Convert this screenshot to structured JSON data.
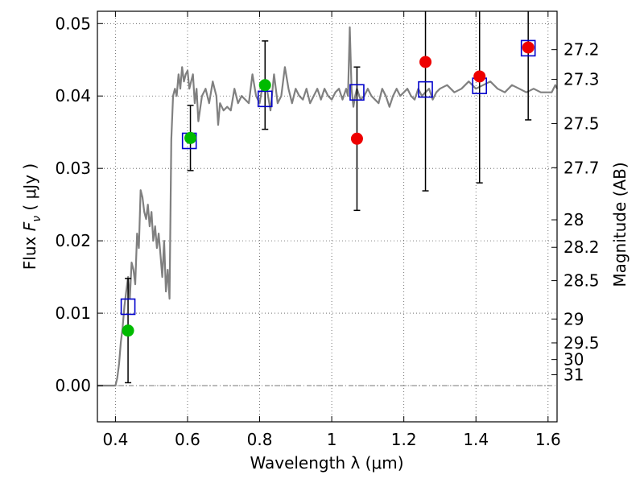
{
  "chart_data": {
    "type": "scatter",
    "xlabel": "Wavelength  λ (μm)",
    "ylabel_left_main": "Flux  ",
    "ylabel_left_var": "F",
    "ylabel_left_sub": "ν",
    "ylabel_left_unit": "  ( μJy )",
    "ylabel_right": "Magnitude (AB)",
    "xlim": [
      0.35,
      1.625
    ],
    "ylim": [
      -0.005,
      0.0517
    ],
    "x_ticks": [
      {
        "value": 0.4,
        "label": "0.4"
      },
      {
        "value": 0.6,
        "label": "0.6"
      },
      {
        "value": 0.8,
        "label": "0.8"
      },
      {
        "value": 1.0,
        "label": "1"
      },
      {
        "value": 1.2,
        "label": "1.2"
      },
      {
        "value": 1.4,
        "label": "1.4"
      },
      {
        "value": 1.6,
        "label": "1.6"
      }
    ],
    "y_ticks": [
      {
        "value": 0.0,
        "label": "0.00"
      },
      {
        "value": 0.01,
        "label": "0.01"
      },
      {
        "value": 0.02,
        "label": "0.02"
      },
      {
        "value": 0.03,
        "label": "0.03"
      },
      {
        "value": 0.04,
        "label": "0.04"
      },
      {
        "value": 0.05,
        "label": "0.05"
      }
    ],
    "right_ticks": [
      {
        "flux": 0.0464,
        "label": "27.2"
      },
      {
        "flux": 0.0423,
        "label": "27.3"
      },
      {
        "flux": 0.0362,
        "label": "27.5"
      },
      {
        "flux": 0.0301,
        "label": "27.7"
      },
      {
        "flux": 0.0229,
        "label": "28"
      },
      {
        "flux": 0.0191,
        "label": "28.2"
      },
      {
        "flux": 0.0145,
        "label": "28.5"
      },
      {
        "flux": 0.0092,
        "label": "29"
      },
      {
        "flux": 0.0059,
        "label": "29.5"
      },
      {
        "flux": 0.0036,
        "label": "30"
      },
      {
        "flux": 0.0015,
        "label": "31"
      }
    ],
    "grid": true,
    "colors": {
      "spectrum": "#808080",
      "model_box": "#0000cc",
      "detection": "#00bb00",
      "upper": "#ee0000",
      "errorbar": "#000000",
      "zero_line": "#777777"
    },
    "series": [
      {
        "style": "spectrum-line",
        "x": [
          0.35,
          0.4,
          0.405,
          0.41,
          0.415,
          0.42,
          0.425,
          0.43,
          0.435,
          0.44,
          0.445,
          0.45,
          0.455,
          0.46,
          0.465,
          0.47,
          0.475,
          0.48,
          0.485,
          0.49,
          0.495,
          0.5,
          0.505,
          0.51,
          0.515,
          0.52,
          0.525,
          0.53,
          0.535,
          0.54,
          0.545,
          0.55,
          0.555,
          0.56,
          0.565,
          0.57,
          0.575,
          0.58,
          0.585,
          0.59,
          0.595,
          0.6,
          0.605,
          0.61,
          0.615,
          0.62,
          0.625,
          0.63,
          0.64,
          0.65,
          0.66,
          0.67,
          0.675,
          0.68,
          0.685,
          0.69,
          0.7,
          0.71,
          0.72,
          0.73,
          0.74,
          0.75,
          0.76,
          0.77,
          0.78,
          0.79,
          0.8,
          0.81,
          0.82,
          0.83,
          0.84,
          0.85,
          0.86,
          0.87,
          0.88,
          0.89,
          0.9,
          0.91,
          0.92,
          0.93,
          0.94,
          0.95,
          0.96,
          0.97,
          0.98,
          0.99,
          1.0,
          1.01,
          1.02,
          1.03,
          1.04,
          1.045,
          1.05,
          1.055,
          1.06,
          1.065,
          1.07,
          1.08,
          1.09,
          1.1,
          1.11,
          1.12,
          1.13,
          1.14,
          1.15,
          1.16,
          1.17,
          1.18,
          1.19,
          1.2,
          1.21,
          1.22,
          1.23,
          1.24,
          1.25,
          1.26,
          1.27,
          1.28,
          1.29,
          1.3,
          1.32,
          1.34,
          1.36,
          1.38,
          1.4,
          1.42,
          1.44,
          1.46,
          1.48,
          1.5,
          1.52,
          1.54,
          1.56,
          1.58,
          1.6,
          1.61,
          1.62,
          1.625
        ],
        "y": [
          0.0,
          0.0,
          0.001,
          0.003,
          0.006,
          0.008,
          0.011,
          0.013,
          0.015,
          0.012,
          0.017,
          0.016,
          0.014,
          0.021,
          0.019,
          0.027,
          0.026,
          0.024,
          0.023,
          0.025,
          0.022,
          0.024,
          0.02,
          0.022,
          0.019,
          0.021,
          0.018,
          0.015,
          0.02,
          0.013,
          0.016,
          0.012,
          0.034,
          0.04,
          0.041,
          0.04,
          0.043,
          0.041,
          0.044,
          0.042,
          0.043,
          0.0435,
          0.041,
          0.042,
          0.043,
          0.039,
          0.041,
          0.0365,
          0.04,
          0.041,
          0.039,
          0.042,
          0.041,
          0.04,
          0.036,
          0.039,
          0.038,
          0.0385,
          0.038,
          0.041,
          0.039,
          0.04,
          0.0395,
          0.039,
          0.043,
          0.04,
          0.039,
          0.042,
          0.041,
          0.038,
          0.043,
          0.039,
          0.04,
          0.044,
          0.041,
          0.039,
          0.041,
          0.04,
          0.0395,
          0.041,
          0.039,
          0.04,
          0.041,
          0.0395,
          0.041,
          0.04,
          0.0395,
          0.0405,
          0.041,
          0.0395,
          0.041,
          0.04,
          0.0495,
          0.041,
          0.0385,
          0.04,
          0.041,
          0.0395,
          0.04,
          0.041,
          0.04,
          0.0395,
          0.039,
          0.041,
          0.04,
          0.0385,
          0.04,
          0.041,
          0.04,
          0.0405,
          0.041,
          0.04,
          0.0395,
          0.041,
          0.04,
          0.0405,
          0.041,
          0.0395,
          0.0405,
          0.041,
          0.0415,
          0.0405,
          0.041,
          0.042,
          0.041,
          0.0415,
          0.042,
          0.041,
          0.0405,
          0.0415,
          0.041,
          0.0405,
          0.041,
          0.0405,
          0.0405,
          0.0405,
          0.0415,
          0.041
        ]
      },
      {
        "style": "model-boxes",
        "x": [
          0.435,
          0.605,
          0.815,
          1.07,
          1.26,
          1.41,
          1.545
        ],
        "y": [
          0.0109,
          0.0338,
          0.0396,
          0.0405,
          0.0409,
          0.0414,
          0.0466
        ]
      },
      {
        "style": "detections",
        "x": [
          0.435,
          0.608,
          0.815
        ],
        "y": [
          0.0076,
          0.0342,
          0.0415
        ],
        "err": [
          0.0072,
          0.0045,
          0.0061
        ]
      },
      {
        "style": "upper-limits",
        "x": [
          1.07,
          1.26,
          1.41,
          1.545
        ],
        "y": [
          0.0341,
          0.0447,
          0.0427,
          0.0467
        ],
        "err": [
          0.0099,
          0.0178,
          0.0147,
          0.01
        ]
      }
    ]
  }
}
